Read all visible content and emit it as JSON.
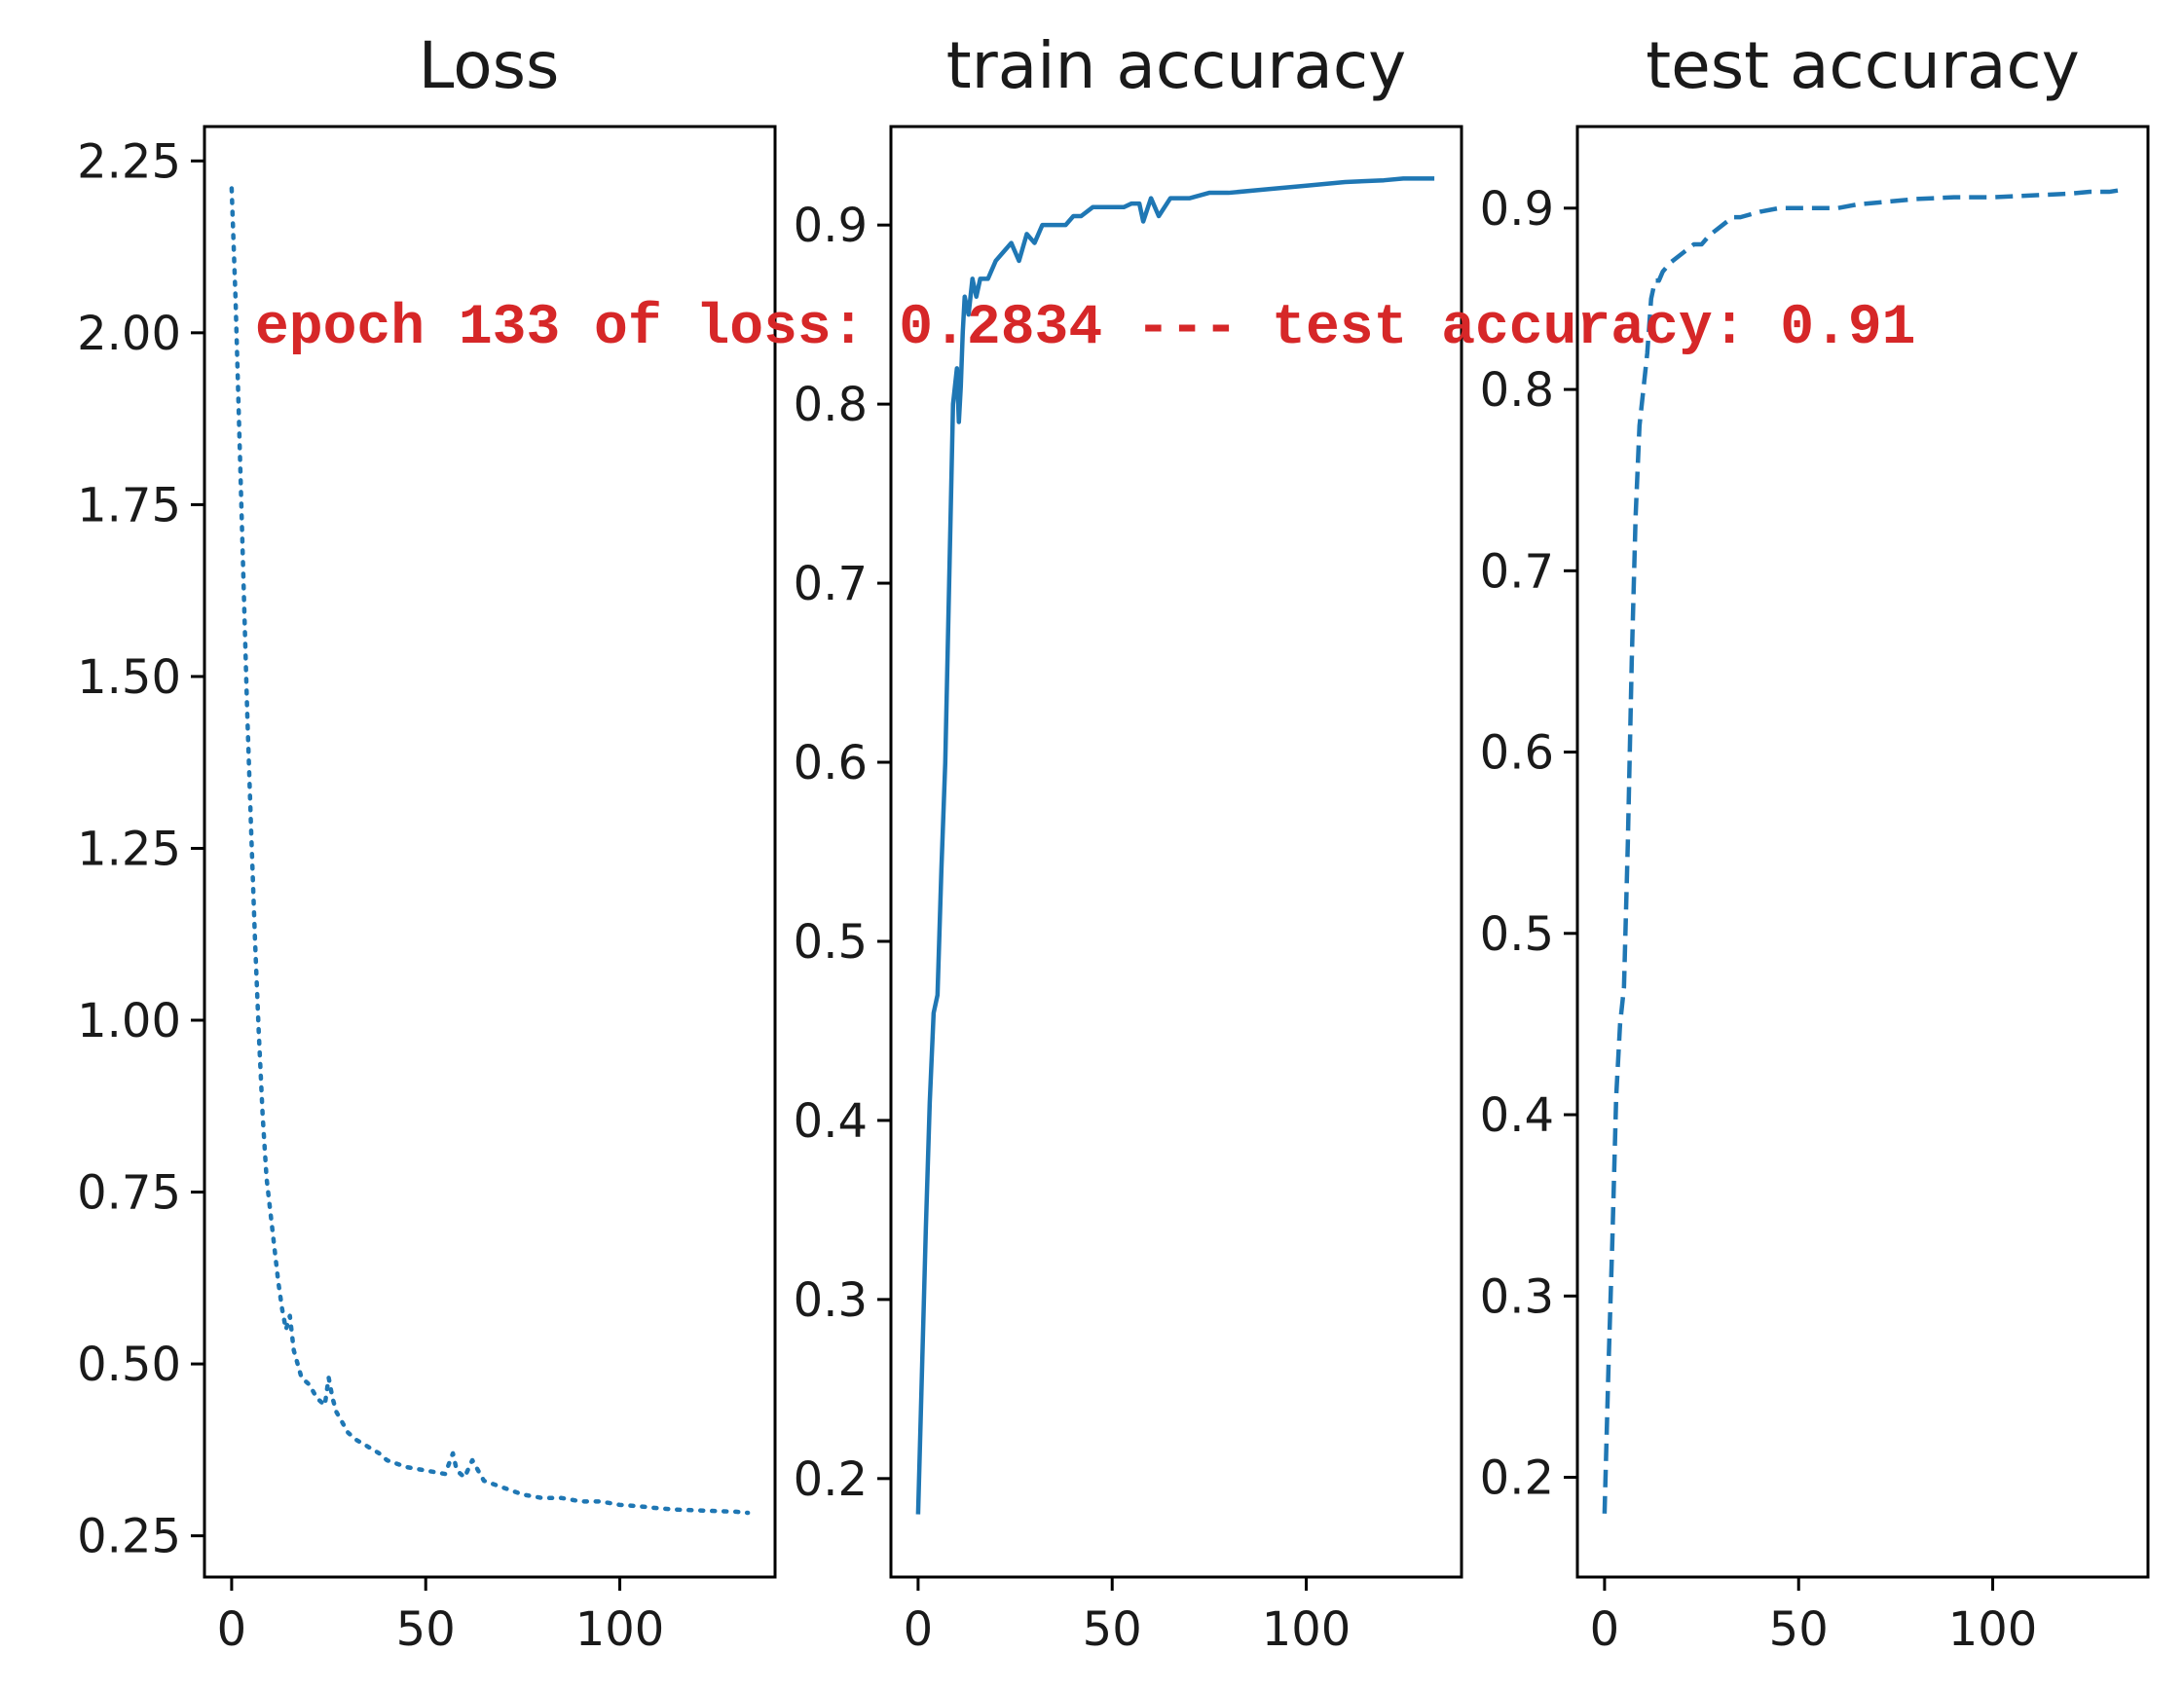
{
  "chart_data": [
    {
      "type": "line",
      "title": "Loss",
      "line_style": "dotted",
      "color": "#1f77b4",
      "xlim": [
        -7,
        140
      ],
      "ylim": [
        0.19,
        2.3
      ],
      "x_ticks": [
        0,
        50,
        100
      ],
      "x_tick_labels": [
        "0",
        "50",
        "100"
      ],
      "y_ticks": [
        0.25,
        0.5,
        0.75,
        1.0,
        1.25,
        1.5,
        1.75,
        2.0,
        2.25
      ],
      "y_tick_labels": [
        "0.25",
        "0.50",
        "0.75",
        "1.00",
        "1.25",
        "1.50",
        "1.75",
        "2.00",
        "2.25"
      ],
      "series": [
        {
          "x": [
            0,
            1,
            2,
            3,
            4,
            5,
            6,
            7,
            8,
            9,
            10,
            11,
            12,
            13,
            14,
            15,
            16,
            17,
            18,
            20,
            22,
            24,
            25,
            26,
            27,
            28,
            30,
            32,
            35,
            38,
            40,
            45,
            50,
            55,
            57,
            58,
            60,
            62,
            65,
            70,
            75,
            80,
            85,
            90,
            95,
            100,
            105,
            110,
            115,
            120,
            125,
            130,
            133
          ],
          "y": [
            2.21,
            2.05,
            1.85,
            1.65,
            1.45,
            1.28,
            1.12,
            0.98,
            0.86,
            0.77,
            0.72,
            0.67,
            0.62,
            0.58,
            0.55,
            0.57,
            0.52,
            0.5,
            0.48,
            0.47,
            0.45,
            0.44,
            0.48,
            0.45,
            0.43,
            0.42,
            0.4,
            0.39,
            0.38,
            0.37,
            0.36,
            0.35,
            0.345,
            0.34,
            0.37,
            0.345,
            0.335,
            0.36,
            0.33,
            0.32,
            0.31,
            0.305,
            0.305,
            0.3,
            0.3,
            0.295,
            0.293,
            0.29,
            0.288,
            0.287,
            0.286,
            0.285,
            0.2834
          ]
        }
      ]
    },
    {
      "type": "line",
      "title": "train accuracy",
      "line_style": "solid",
      "color": "#1f77b4",
      "xlim": [
        -7,
        140
      ],
      "ylim": [
        0.145,
        0.955
      ],
      "x_ticks": [
        0,
        50,
        100
      ],
      "x_tick_labels": [
        "0",
        "50",
        "100"
      ],
      "y_ticks": [
        0.2,
        0.3,
        0.4,
        0.5,
        0.6,
        0.7,
        0.8,
        0.9
      ],
      "y_tick_labels": [
        "0.2",
        "0.3",
        "0.4",
        "0.5",
        "0.6",
        "0.7",
        "0.8",
        "0.9"
      ],
      "series": [
        {
          "x": [
            0,
            1,
            2,
            3,
            4,
            5,
            6,
            7,
            8,
            9,
            10,
            10.5,
            11,
            11.5,
            12,
            13,
            14,
            15,
            16,
            18,
            20,
            22,
            24,
            26,
            28,
            30,
            32,
            35,
            38,
            40,
            42,
            45,
            48,
            50,
            53,
            55,
            57,
            58,
            60,
            62,
            65,
            70,
            75,
            80,
            90,
            100,
            110,
            120,
            125,
            130,
            133
          ],
          "y": [
            0.18,
            0.26,
            0.34,
            0.41,
            0.46,
            0.47,
            0.54,
            0.6,
            0.7,
            0.8,
            0.82,
            0.79,
            0.81,
            0.84,
            0.86,
            0.85,
            0.87,
            0.86,
            0.87,
            0.87,
            0.88,
            0.885,
            0.89,
            0.88,
            0.895,
            0.89,
            0.9,
            0.9,
            0.9,
            0.905,
            0.905,
            0.91,
            0.91,
            0.91,
            0.91,
            0.912,
            0.912,
            0.902,
            0.915,
            0.905,
            0.915,
            0.915,
            0.918,
            0.918,
            0.92,
            0.922,
            0.924,
            0.925,
            0.926,
            0.926,
            0.926
          ]
        }
      ]
    },
    {
      "type": "line",
      "title": "test accuracy",
      "line_style": "dashed",
      "color": "#1f77b4",
      "xlim": [
        -7,
        140
      ],
      "ylim": [
        0.145,
        0.945
      ],
      "x_ticks": [
        0,
        50,
        100
      ],
      "x_tick_labels": [
        "0",
        "50",
        "100"
      ],
      "y_ticks": [
        0.2,
        0.3,
        0.4,
        0.5,
        0.6,
        0.7,
        0.8,
        0.9
      ],
      "y_tick_labels": [
        "0.2",
        "0.3",
        "0.4",
        "0.5",
        "0.6",
        "0.7",
        "0.8",
        "0.9"
      ],
      "series": [
        {
          "x": [
            0,
            1,
            2,
            3,
            4,
            5,
            6,
            7,
            8,
            9,
            10,
            11,
            12,
            13,
            14,
            15,
            17,
            20,
            23,
            25,
            27,
            30,
            33,
            35,
            40,
            45,
            50,
            55,
            60,
            65,
            70,
            75,
            80,
            90,
            100,
            110,
            120,
            125,
            130,
            133
          ],
          "y": [
            0.18,
            0.26,
            0.33,
            0.41,
            0.45,
            0.47,
            0.55,
            0.65,
            0.73,
            0.78,
            0.8,
            0.82,
            0.85,
            0.86,
            0.86,
            0.865,
            0.87,
            0.875,
            0.88,
            0.88,
            0.885,
            0.89,
            0.895,
            0.895,
            0.898,
            0.9,
            0.9,
            0.9,
            0.9,
            0.902,
            0.903,
            0.904,
            0.905,
            0.906,
            0.906,
            0.907,
            0.908,
            0.909,
            0.909,
            0.91
          ]
        }
      ]
    }
  ],
  "annotation": {
    "text": "epoch 133 of loss: 0.2834 --- test accuracy: 0.91",
    "color": "#d62728"
  }
}
